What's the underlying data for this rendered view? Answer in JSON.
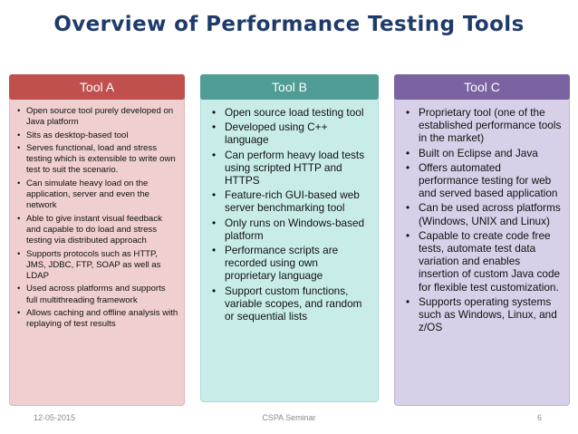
{
  "title": "Overview of Performance Testing Tools",
  "columns": [
    {
      "header": "Tool A",
      "items": [
        "Open source tool purely developed on Java platform",
        "Sits as desktop-based tool",
        "Serves functional, load and stress testing which is extensible to write own test to suit the scenario.",
        "Can simulate heavy load on the application, server and even the network",
        "Able to give instant visual feedback and capable to do load and stress testing via distributed approach",
        "Supports protocols such as HTTP, JMS, JDBC, FTP, SOAP as well as LDAP",
        "Used  across  platforms and supports full multithreading framework",
        "Allows caching and offline analysis with replaying of test results"
      ]
    },
    {
      "header": "Tool B",
      "items": [
        "Open source load testing tool",
        "Developed using C++ language",
        "Can perform heavy load tests using scripted HTTP and HTTPS",
        "Feature-rich GUI-based web server benchmarking tool",
        "Only runs on Windows-based platform",
        "Performance scripts are recorded using own proprietary language",
        "Support custom functions, variable scopes, and random or sequential lists"
      ]
    },
    {
      "header": "Tool C",
      "items": [
        "Proprietary tool (one of the established performance tools in the market)",
        "Built on Eclipse and Java",
        "Offers automated performance testing for web and served based application",
        "Can be used across platforms (Windows, UNIX and Linux)",
        "Capable to create code free tests,  automate test data variation and enables insertion of custom Java code for flexible test customization.",
        "Supports operating systems such as Windows, Linux, and z/OS"
      ]
    }
  ],
  "footer": {
    "date": "12-05-2015",
    "center": "CSPA Seminar",
    "page": "6"
  }
}
